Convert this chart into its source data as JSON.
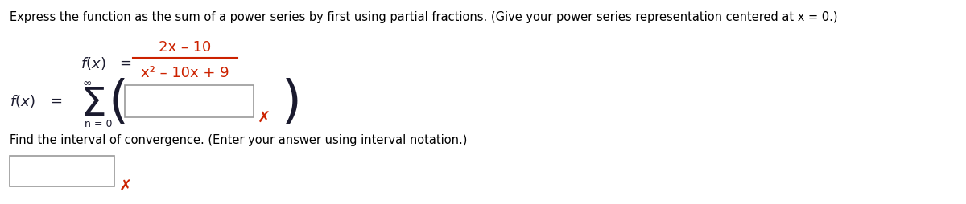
{
  "background_color": "#ffffff",
  "title_text": "Express the function as the sum of a power series by first using partial fractions. (Give your power series representation centered at x = 0.)",
  "title_fontsize": 10.5,
  "title_color": "#000000",
  "numerator": "2x – 10",
  "denominator": "x² – 10x + 9",
  "sum_from": "n = 0",
  "sum_to": "∞",
  "find_text": "Find the interval of convergence. (Enter your answer using interval notation.)",
  "find_fontsize": 10.5,
  "red_x_color": "#cc2200",
  "fraction_color": "#cc2200",
  "text_color": "#1a1a2e",
  "label_color": "#1a1a2e",
  "italic_color": "#1a1a2e"
}
